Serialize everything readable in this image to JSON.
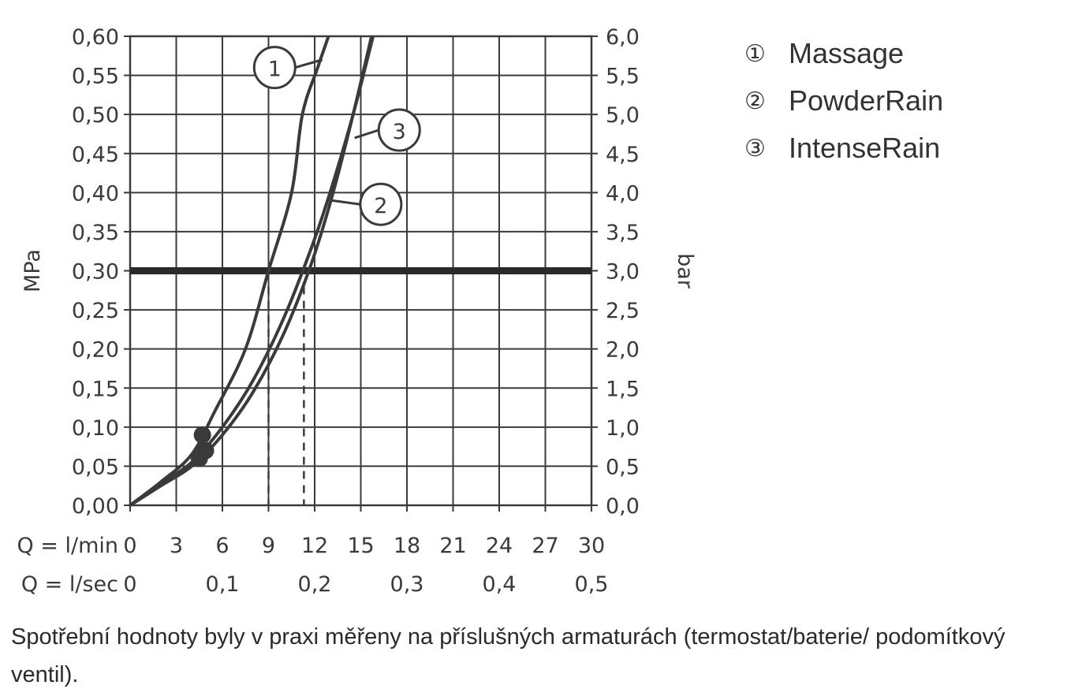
{
  "chart_data": {
    "type": "line",
    "y_axis_left": {
      "label": "MPa",
      "range": [
        0,
        0.6
      ],
      "ticks": [
        "0,00",
        "0,05",
        "0,10",
        "0,15",
        "0,20",
        "0,25",
        "0,30",
        "0,35",
        "0,40",
        "0,45",
        "0,50",
        "0,55",
        "0,60"
      ]
    },
    "y_axis_right": {
      "label": "bar",
      "range": [
        0,
        6
      ],
      "ticks": [
        "0,0",
        "0,5",
        "1,0",
        "1,5",
        "2,0",
        "2,5",
        "3,0",
        "3,5",
        "4,0",
        "4,5",
        "5,0",
        "5,5",
        "6,0"
      ]
    },
    "x_axis_lmin": {
      "label": "Q = l/min",
      "range": [
        0,
        30
      ],
      "ticks": [
        "0",
        "3",
        "6",
        "9",
        "12",
        "15",
        "18",
        "21",
        "24",
        "27",
        "30"
      ]
    },
    "x_axis_lsec": {
      "label": "Q = l/sec",
      "ticks": [
        {
          "value": 0,
          "label": "0"
        },
        {
          "value": 0.1,
          "label": "0,1"
        },
        {
          "value": 0.2,
          "label": "0,2"
        },
        {
          "value": 0.3,
          "label": "0,3"
        },
        {
          "value": 0.4,
          "label": "0,4"
        },
        {
          "value": 0.5,
          "label": "0,5"
        }
      ]
    },
    "reference_line": {
      "y": 0.3
    },
    "series": [
      {
        "id": "1",
        "name": "Massage",
        "points": [
          [
            0,
            0
          ],
          [
            2,
            0.03
          ],
          [
            4,
            0.065
          ],
          [
            5.5,
            0.12
          ],
          [
            7.5,
            0.2
          ],
          [
            9,
            0.3
          ],
          [
            10.5,
            0.4
          ],
          [
            11.2,
            0.5
          ],
          [
            12.2,
            0.56
          ],
          [
            12.9,
            0.6
          ]
        ],
        "start_marker": [
          4.7,
          0.09
        ],
        "label_at": [
          9.4,
          0.56
        ],
        "callout_to": [
          12.5,
          0.57
        ]
      },
      {
        "id": "2",
        "name": "PowderRain",
        "points": [
          [
            0,
            0
          ],
          [
            2,
            0.028
          ],
          [
            4,
            0.055
          ],
          [
            6,
            0.1
          ],
          [
            8,
            0.16
          ],
          [
            10,
            0.24
          ],
          [
            11.8,
            0.33
          ],
          [
            13,
            0.4
          ],
          [
            14.5,
            0.5
          ],
          [
            15.8,
            0.6
          ]
        ],
        "start_marker": [
          4.9,
          0.07
        ],
        "label_at": [
          16.3,
          0.385
        ],
        "callout_to": [
          13.1,
          0.39
        ]
      },
      {
        "id": "3",
        "name": "IntenseRain",
        "points": [
          [
            0,
            0
          ],
          [
            2,
            0.025
          ],
          [
            4,
            0.05
          ],
          [
            6,
            0.09
          ],
          [
            8,
            0.145
          ],
          [
            10,
            0.22
          ],
          [
            11.8,
            0.31
          ],
          [
            13.2,
            0.4
          ],
          [
            14.5,
            0.5
          ],
          [
            15.7,
            0.6
          ]
        ],
        "start_marker": [
          4.5,
          0.06
        ],
        "label_at": [
          17.5,
          0.48
        ],
        "callout_to": [
          14.6,
          0.47
        ]
      }
    ],
    "operating_points": [
      {
        "series": "1",
        "x": 9.0,
        "y": 0.3
      },
      {
        "series": "2",
        "x": 11.3,
        "y": 0.3
      }
    ],
    "grid": true,
    "legend_position": "top-right"
  },
  "legend": [
    {
      "num": "①",
      "name": "Massage"
    },
    {
      "num": "②",
      "name": "PowderRain"
    },
    {
      "num": "③",
      "name": "IntenseRain"
    }
  ],
  "note": "Spotřební hodnoty byly v praxi měřeny na příslušných armaturách (termostat/baterie/ podomítkový ventil).",
  "colors": {
    "ink": "#3a3a3a",
    "ref_line": "#2a2a2a",
    "grid": "#3a3a3a"
  }
}
